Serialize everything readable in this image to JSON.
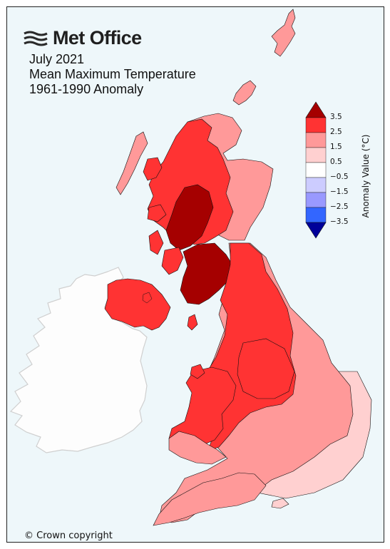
{
  "logo": {
    "text": "Met Office"
  },
  "title": {
    "line1": "July 2021",
    "line2": "Mean Maximum Temperature",
    "line3": "1961-1990 Anomaly"
  },
  "legend": {
    "label": "Anomaly Value (°C)",
    "ticks": [
      "3.5",
      "2.5",
      "1.5",
      "0.5",
      "−0.5",
      "−1.5",
      "−2.5",
      "−3.5"
    ],
    "bins": [
      {
        "color": "#a50000",
        "range": [
          3.5,
          null
        ]
      },
      {
        "color": "#ff3333",
        "range": [
          2.5,
          3.5
        ]
      },
      {
        "color": "#ff9999",
        "range": [
          1.5,
          2.5
        ]
      },
      {
        "color": "#ffd0d0",
        "range": [
          0.5,
          1.5
        ]
      },
      {
        "color": "#ffffff",
        "range": [
          -0.5,
          0.5
        ]
      },
      {
        "color": "#ccccff",
        "range": [
          -1.5,
          -0.5
        ]
      },
      {
        "color": "#9999ff",
        "range": [
          -2.5,
          -1.5
        ]
      },
      {
        "color": "#3366ff",
        "range": [
          -3.5,
          -2.5
        ]
      },
      {
        "color": "#000099",
        "range": [
          null,
          -3.5
        ]
      }
    ]
  },
  "map": {
    "background_color": "#eef7fa",
    "ireland_color": "#fdfdfd",
    "regions": [
      {
        "name": "scotland-north",
        "anomaly_class": "2.5 to 3.5"
      },
      {
        "name": "scotland-west",
        "anomaly_class": ">3.5"
      },
      {
        "name": "scotland-south",
        "anomaly_class": ">3.5"
      },
      {
        "name": "scotland-east",
        "anomaly_class": "1.5 to 2.5"
      },
      {
        "name": "northern-ireland",
        "anomaly_class": "2.5 to 3.5"
      },
      {
        "name": "north-england",
        "anomaly_class": "2.5 to 3.5"
      },
      {
        "name": "wales",
        "anomaly_class": "2.5 to 3.5"
      },
      {
        "name": "midlands",
        "anomaly_class": "2.5 to 3.5"
      },
      {
        "name": "east-england",
        "anomaly_class": "1.5 to 2.5"
      },
      {
        "name": "south-east-england",
        "anomaly_class": "0.5 to 1.5"
      },
      {
        "name": "south-west-england",
        "anomaly_class": "1.5 to 2.5"
      }
    ]
  },
  "copyright": "© Crown copyright"
}
